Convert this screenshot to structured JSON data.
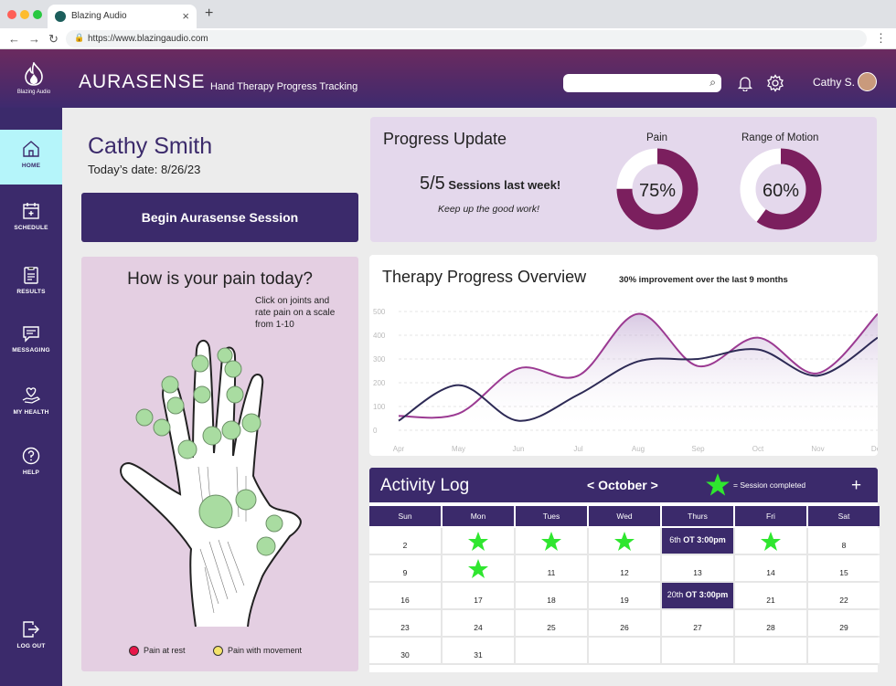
{
  "browser": {
    "tab_title": "Blazing Audio",
    "tab_close": "×",
    "new_tab": "+",
    "url": "https://www.blazingaudio.com",
    "nav_back": "←",
    "nav_forward": "→",
    "nav_reload": "↻",
    "menu": "⋮"
  },
  "header": {
    "logo_text": "Blazing Audio",
    "brand": "AURASENSE",
    "tagline": "Hand Therapy Progress Tracking",
    "search_placeholder": "",
    "user_name": "Cathy S."
  },
  "sidebar": {
    "items": [
      {
        "label": "HOME",
        "icon": "home-icon"
      },
      {
        "label": "SCHEDULE",
        "icon": "calendar-icon"
      },
      {
        "label": "RESULTS",
        "icon": "clipboard-icon"
      },
      {
        "label": "MESSAGING",
        "icon": "chat-icon"
      },
      {
        "label": "MY HEALTH",
        "icon": "heart-hand-icon"
      },
      {
        "label": "HELP",
        "icon": "help-icon"
      }
    ],
    "logout_label": "LOG OUT"
  },
  "patient": {
    "name": "Cathy Smith",
    "date_line": "Today’s date: 8/26/23"
  },
  "begin_button": "Begin Aurasense Session",
  "progress": {
    "title": "Progress Update",
    "sessions_count": "5/5",
    "sessions_text": " Sessions last week!",
    "encouragement": "Keep up the good work!",
    "pain_label": "Pain",
    "pain_value": "75%",
    "pain_fraction": 0.75,
    "rom_label": "Range of Motion",
    "rom_value": "60%",
    "rom_fraction": 0.6,
    "ring_color": "#7b1f5e"
  },
  "pain": {
    "title": "How is your pain today?",
    "instructions": "Click on joints and rate pain on a scale from 1-10",
    "legend_rest": "Pain at rest",
    "legend_movement": "Pain with movement",
    "rest_color": "#e8174a",
    "movement_color": "#f4e36a",
    "joint_color": "#a9dca1"
  },
  "overview": {
    "title": "Therapy Progress Overview",
    "subtitle": "30% improvement over the last 9 months"
  },
  "chart_data": {
    "type": "line",
    "x": [
      "Apr",
      "May",
      "Jun",
      "Jul",
      "Aug",
      "Sep",
      "Oct",
      "Nov",
      "Dec"
    ],
    "ylim": [
      0,
      500
    ],
    "yticks": [
      0,
      100,
      200,
      300,
      400,
      500
    ],
    "grid": true,
    "series": [
      {
        "values": [
          60,
          70,
          260,
          230,
          490,
          270,
          390,
          240,
          490
        ],
        "color": "#9b3a92"
      },
      {
        "values": [
          40,
          190,
          40,
          150,
          290,
          300,
          340,
          230,
          390
        ],
        "color": "#2d2a55"
      }
    ]
  },
  "activity": {
    "title": "Activity Log",
    "month": "< October >",
    "legend_text": "=  Session completed",
    "add": "+",
    "days": [
      "Sun",
      "Mon",
      "Tues",
      "Wed",
      "Thurs",
      "Fri",
      "Sat"
    ],
    "star_color": "#2fe62f",
    "weeks": [
      [
        {
          "n": "2"
        },
        {
          "star": true
        },
        {
          "star": true
        },
        {
          "star": true
        },
        {
          "appt_day": "6th",
          "appt": "OT 3:00pm"
        },
        {
          "star": true
        },
        {
          "n": "8"
        }
      ],
      [
        {
          "n": "9"
        },
        {
          "star": true
        },
        {
          "n": "11"
        },
        {
          "n": "12"
        },
        {
          "n": "13"
        },
        {
          "n": "14"
        },
        {
          "n": "15"
        }
      ],
      [
        {
          "n": "16"
        },
        {
          "n": "17"
        },
        {
          "n": "18"
        },
        {
          "n": "19"
        },
        {
          "appt_day": "20th",
          "appt": "OT 3:00pm"
        },
        {
          "n": "21"
        },
        {
          "n": "22"
        }
      ],
      [
        {
          "n": "23"
        },
        {
          "n": "24"
        },
        {
          "n": "25"
        },
        {
          "n": "26"
        },
        {
          "n": "27"
        },
        {
          "n": "28"
        },
        {
          "n": "29"
        }
      ],
      [
        {
          "n": "30"
        },
        {
          "n": "31"
        },
        {},
        {},
        {},
        {},
        {}
      ]
    ]
  }
}
